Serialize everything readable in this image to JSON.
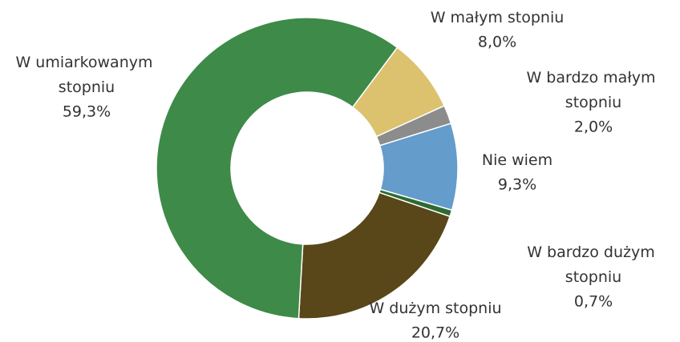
{
  "chart_data": {
    "type": "donut",
    "categories": [
      "W małym stopniu",
      "W bardzo małym stopniu",
      "Nie wiem",
      "W bardzo dużym stopniu",
      "W dużym stopniu",
      "W umiarkowanym stopniu"
    ],
    "values": [
      8.0,
      2.0,
      9.3,
      0.7,
      20.7,
      59.3
    ],
    "value_labels": [
      "8,0%",
      "2,0%",
      "9,3%",
      "0,7%",
      "20,7%",
      "59,3%"
    ],
    "colors": [
      "#dcc26e",
      "#8c8c8c",
      "#649ccb",
      "#2e6b30",
      "#594619",
      "#3e8a48"
    ]
  }
}
